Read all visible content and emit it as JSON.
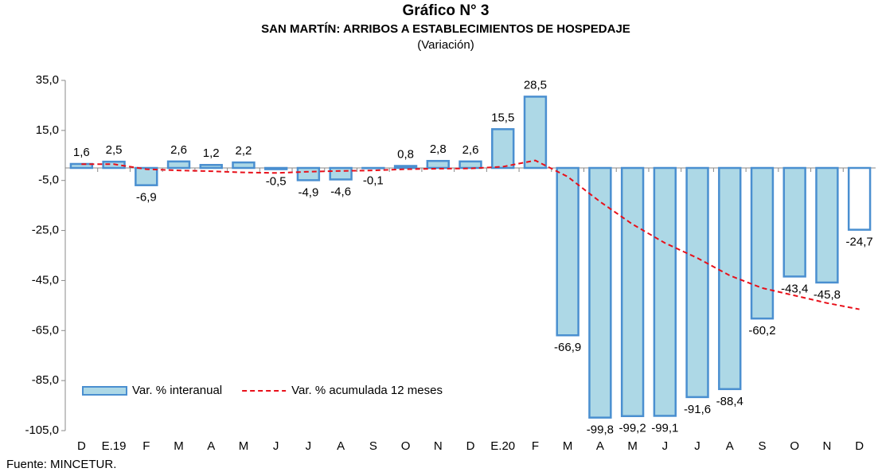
{
  "chart_data": {
    "type": "bar",
    "title": "Gráfico N° 3",
    "subtitle": "SAN MARTÍN: ARRIBOS A ESTABLECIMIENTOS DE HOSPEDAJE",
    "unit_note": "(Variación)",
    "source": "Fuente: MINCETUR.",
    "categories": [
      "D",
      "E.19",
      "F",
      "M",
      "A",
      "M",
      "J",
      "J",
      "A",
      "S",
      "O",
      "N",
      "D",
      "E.20",
      "F",
      "M",
      "A",
      "M",
      "J",
      "J",
      "A",
      "S",
      "O",
      "N",
      "D"
    ],
    "series": [
      {
        "name": "Var. % interanual",
        "type": "bar",
        "color": "#4a8fd0",
        "colors": [
          "#add8e6",
          "#add8e6",
          "#add8e6",
          "#add8e6",
          "#add8e6",
          "#add8e6",
          "#add8e6",
          "#add8e6",
          "#add8e6",
          "#add8e6",
          "#add8e6",
          "#add8e6",
          "#add8e6",
          "#add8e6",
          "#add8e6",
          "#add8e6",
          "#add8e6",
          "#add8e6",
          "#add8e6",
          "#add8e6",
          "#add8e6",
          "#add8e6",
          "#add8e6",
          "#add8e6",
          "#ffffff"
        ],
        "values": [
          1.6,
          2.5,
          -6.9,
          2.6,
          1.2,
          2.2,
          -0.5,
          -4.9,
          -4.6,
          -0.1,
          0.8,
          2.8,
          2.6,
          15.5,
          28.5,
          -66.9,
          -99.8,
          -99.2,
          -99.1,
          -91.6,
          -88.4,
          -60.2,
          -43.4,
          -45.8,
          -24.7
        ],
        "value_labels": [
          "1,6",
          "2,5",
          "-6,9",
          "2,6",
          "1,2",
          "2,2",
          "-0,5",
          "-4,9",
          "-4,6",
          "-0,1",
          "0,8",
          "2,8",
          "2,6",
          "15,5",
          "28,5",
          "-66,9",
          "-99,8",
          "-99,2",
          "-99,1",
          "-91,6",
          "-88,4",
          "-60,2",
          "-43,4",
          "-45,8",
          "-24,7"
        ]
      },
      {
        "name": "Var. % acumulada 12 meses",
        "type": "line",
        "color": "#e8101a",
        "values": [
          1.5,
          1.5,
          -0.5,
          -1,
          -1.3,
          -1.8,
          -2,
          -1.5,
          -1.2,
          -1,
          -0.5,
          -0.3,
          -0.2,
          0.5,
          3,
          -3.5,
          -13.5,
          -22.5,
          -30,
          -36,
          -43,
          -48,
          -51,
          -54,
          -56.5
        ]
      }
    ],
    "ylim": [
      -105,
      35
    ],
    "yticks": [
      {
        "value": 35,
        "label": "35,0"
      },
      {
        "value": 15,
        "label": "15,0"
      },
      {
        "value": -5,
        "label": "-5,0"
      },
      {
        "value": -25,
        "label": "-25,0"
      },
      {
        "value": -45,
        "label": "-45,0"
      },
      {
        "value": -65,
        "label": "-65,0"
      },
      {
        "value": -85,
        "label": "-85,0"
      },
      {
        "value": -105,
        "label": "-105,0"
      }
    ],
    "legend": "lower left"
  }
}
